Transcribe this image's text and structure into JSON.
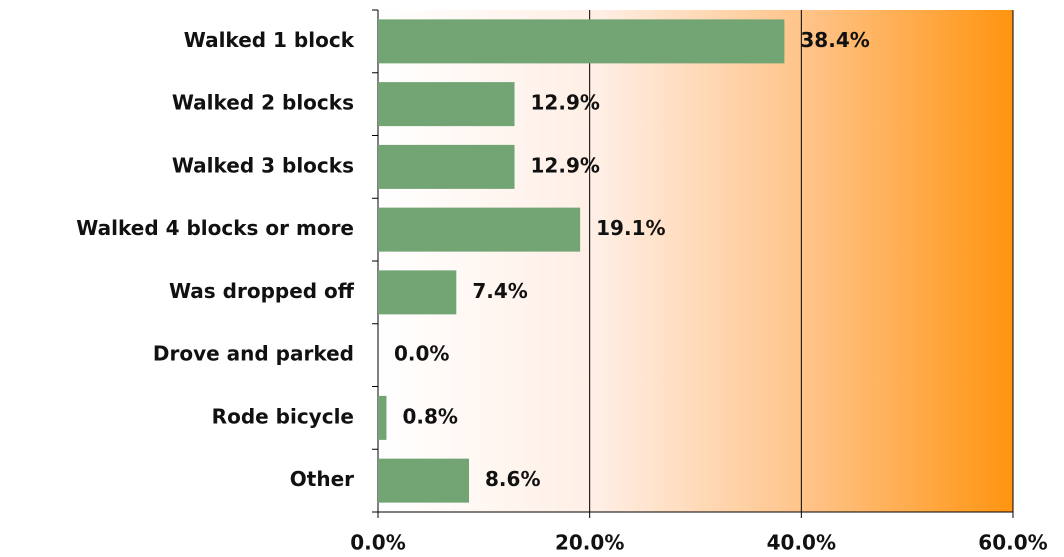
{
  "chart_data": {
    "type": "bar",
    "orientation": "horizontal",
    "categories": [
      "Walked 1 block",
      "Walked 2 blocks",
      "Walked 3 blocks",
      "Walked 4 blocks or more",
      "Was dropped off",
      "Drove and parked",
      "Rode bicycle",
      "Other"
    ],
    "values": [
      38.4,
      12.9,
      12.9,
      19.1,
      7.4,
      0.0,
      0.8,
      8.6
    ],
    "value_labels": [
      "38.4%",
      "12.9%",
      "12.9%",
      "19.1%",
      "7.4%",
      "0.0%",
      "0.8%",
      "8.6%"
    ],
    "color": "#72a474",
    "xlim": [
      0,
      60
    ],
    "xticks": [
      {
        "value": 0,
        "label": "0.0%"
      },
      {
        "value": 20,
        "label": "20.0%"
      },
      {
        "value": 40,
        "label": "40.0%"
      },
      {
        "value": 60,
        "label": "60.0%"
      }
    ],
    "grid": true
  }
}
